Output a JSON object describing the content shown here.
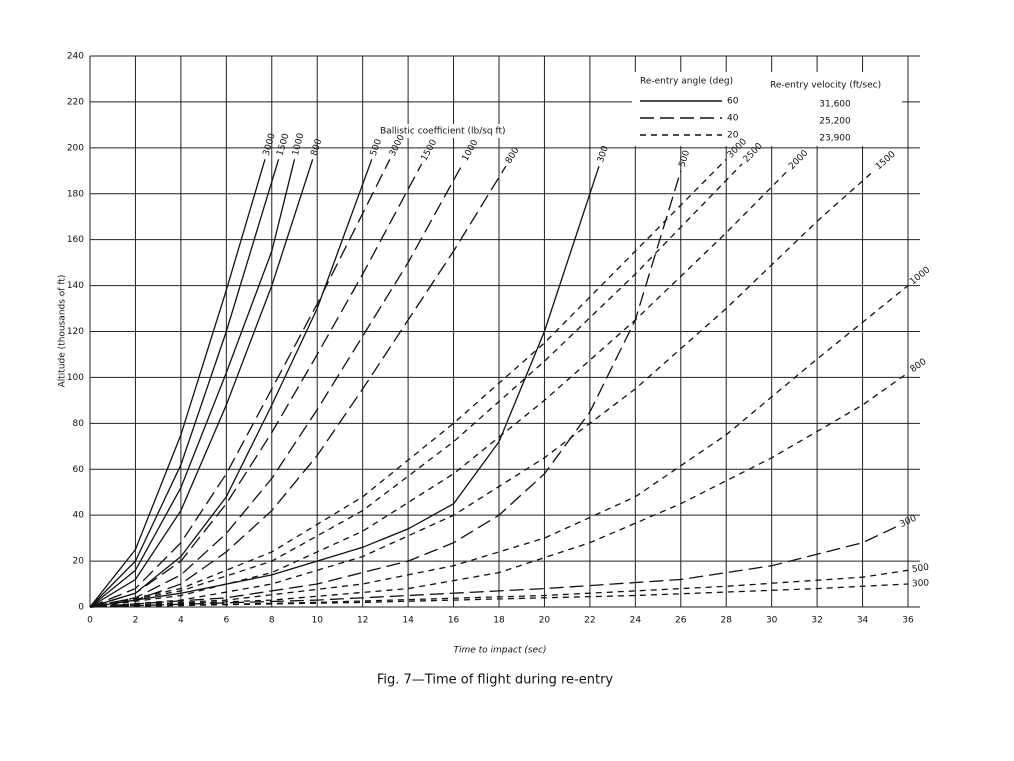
{
  "chart_data": {
    "type": "line",
    "title": "Fig. 7—Time of flight during re-entry",
    "x_label": "Time to impact (sec)",
    "y_label": "Altitude (thousands of ft)",
    "annotation": "Ballistic coefficient (lb/sq ft)",
    "xlim": [
      0,
      36
    ],
    "xticks": [
      0,
      2,
      4,
      6,
      8,
      10,
      12,
      14,
      16,
      18,
      20,
      22,
      24,
      26,
      28,
      30,
      32,
      34,
      36
    ],
    "ylim": [
      0,
      240
    ],
    "yticks": [
      0,
      20,
      40,
      60,
      80,
      100,
      120,
      140,
      160,
      180,
      200,
      220,
      240
    ],
    "grid": true,
    "color": "#111111",
    "legend": {
      "angle_title": "Re-entry angle (deg)",
      "velocity_title": "Re-entry velocity (ft/sec)",
      "entries": [
        {
          "angle": 60,
          "velocity": "31,600",
          "dash": "solid"
        },
        {
          "angle": 40,
          "velocity": "25,200",
          "dash": "long"
        },
        {
          "angle": 20,
          "velocity": "23,900",
          "dash": "short"
        }
      ]
    },
    "series": [
      {
        "name": "3000",
        "angle": 60,
        "x": [
          0,
          2,
          4,
          6,
          7.7
        ],
        "values": [
          0,
          25,
          75,
          138,
          195
        ]
      },
      {
        "name": "1500",
        "angle": 60,
        "x": [
          0,
          2,
          4,
          6,
          8.3
        ],
        "values": [
          0,
          20,
          62,
          120,
          195
        ]
      },
      {
        "name": "1000",
        "angle": 60,
        "x": [
          0,
          2,
          4,
          6,
          8,
          9
        ],
        "values": [
          0,
          16,
          52,
          102,
          155,
          195
        ]
      },
      {
        "name": "800",
        "angle": 60,
        "x": [
          0,
          2,
          4,
          6,
          8,
          9.8
        ],
        "values": [
          0,
          12,
          42,
          88,
          140,
          195
        ]
      },
      {
        "name": "500",
        "angle": 60,
        "x": [
          0,
          2,
          4,
          6,
          8,
          10,
          12.4
        ],
        "values": [
          0,
          6,
          22,
          48,
          88,
          130,
          195
        ]
      },
      {
        "name": "300",
        "angle": 60,
        "x": [
          0,
          4,
          8,
          12,
          14,
          16,
          18,
          20,
          22.4
        ],
        "values": [
          0,
          6,
          14,
          26,
          34,
          45,
          72,
          120,
          192
        ]
      },
      {
        "name": "3000",
        "angle": 40,
        "x": [
          0,
          2,
          4,
          6,
          8,
          10,
          13.2
        ],
        "values": [
          0,
          8,
          28,
          58,
          95,
          132,
          195
        ]
      },
      {
        "name": "1500",
        "angle": 40,
        "x": [
          0,
          2,
          4,
          6,
          8,
          10,
          12,
          14.6
        ],
        "values": [
          0,
          6,
          20,
          45,
          76,
          110,
          145,
          193
        ]
      },
      {
        "name": "1000",
        "angle": 40,
        "x": [
          0,
          2,
          4,
          6,
          8,
          10,
          12,
          14,
          16.4
        ],
        "values": [
          0,
          4,
          14,
          32,
          56,
          86,
          118,
          150,
          193
        ]
      },
      {
        "name": "800",
        "angle": 40,
        "x": [
          0,
          2,
          4,
          6,
          8,
          10,
          12,
          14,
          16,
          18.3
        ],
        "values": [
          0,
          3,
          10,
          24,
          42,
          66,
          95,
          125,
          155,
          192
        ]
      },
      {
        "name": "500",
        "angle": 40,
        "x": [
          0,
          6,
          10,
          14,
          16,
          18,
          20,
          22,
          24,
          26
        ],
        "values": [
          0,
          4,
          10,
          20,
          28,
          40,
          58,
          85,
          125,
          190
        ]
      },
      {
        "name": "300",
        "angle": 40,
        "x": [
          0,
          10,
          20,
          26,
          30,
          34,
          35.5
        ],
        "values": [
          0,
          3,
          8,
          12,
          18,
          28,
          35
        ]
      },
      {
        "name": "3000",
        "angle": 20,
        "x": [
          0,
          4,
          8,
          12,
          16,
          20,
          24,
          28
        ],
        "values": [
          0,
          8,
          24,
          48,
          80,
          115,
          155,
          195
        ]
      },
      {
        "name": "2500",
        "angle": 20,
        "x": [
          0,
          4,
          8,
          12,
          16,
          20,
          24,
          28.7
        ],
        "values": [
          0,
          7,
          20,
          42,
          72,
          107,
          145,
          193
        ]
      },
      {
        "name": "2000",
        "angle": 20,
        "x": [
          0,
          4,
          8,
          12,
          16,
          20,
          24,
          28,
          30.7
        ],
        "values": [
          0,
          5,
          15,
          33,
          58,
          90,
          125,
          163,
          190
        ]
      },
      {
        "name": "1500",
        "angle": 20,
        "x": [
          0,
          4,
          8,
          12,
          16,
          20,
          24,
          28,
          32,
          34.5
        ],
        "values": [
          0,
          3,
          10,
          22,
          40,
          65,
          95,
          130,
          168,
          190
        ]
      },
      {
        "name": "1000",
        "angle": 20,
        "x": [
          0,
          6,
          12,
          16,
          20,
          24,
          28,
          32,
          36
        ],
        "values": [
          0,
          3,
          10,
          18,
          30,
          48,
          75,
          108,
          140
        ]
      },
      {
        "name": "800",
        "angle": 20,
        "x": [
          0,
          8,
          14,
          18,
          22,
          26,
          30,
          34,
          36
        ],
        "values": [
          0,
          3,
          8,
          15,
          28,
          45,
          65,
          88,
          102
        ]
      },
      {
        "name": "500",
        "angle": 20,
        "x": [
          0,
          10,
          20,
          28,
          34,
          36
        ],
        "values": [
          0,
          2,
          5,
          9,
          13,
          16
        ]
      },
      {
        "name": "300",
        "angle": 20,
        "x": [
          0,
          12,
          24,
          32,
          36
        ],
        "values": [
          0,
          2,
          5,
          8,
          10
        ]
      }
    ]
  }
}
